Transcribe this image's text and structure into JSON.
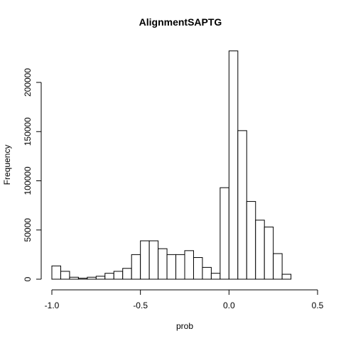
{
  "chart_data": {
    "type": "bar",
    "subtype": "histogram",
    "title": "AlignmentSAPTG",
    "xlabel": "prob",
    "ylabel": "Frequency",
    "xlim": [
      -1.0,
      0.5
    ],
    "ylim": [
      0,
      230000
    ],
    "bin_width": 0.05,
    "bins": [
      {
        "start": -1.0,
        "end": -0.95,
        "value": 13500
      },
      {
        "start": -0.95,
        "end": -0.9,
        "value": 8000
      },
      {
        "start": -0.9,
        "end": -0.85,
        "value": 2000
      },
      {
        "start": -0.85,
        "end": -0.8,
        "value": 1000
      },
      {
        "start": -0.8,
        "end": -0.75,
        "value": 2000
      },
      {
        "start": -0.75,
        "end": -0.7,
        "value": 3000
      },
      {
        "start": -0.7,
        "end": -0.65,
        "value": 6000
      },
      {
        "start": -0.65,
        "end": -0.6,
        "value": 8000
      },
      {
        "start": -0.6,
        "end": -0.55,
        "value": 11000
      },
      {
        "start": -0.55,
        "end": -0.5,
        "value": 25000
      },
      {
        "start": -0.5,
        "end": -0.45,
        "value": 39000
      },
      {
        "start": -0.45,
        "end": -0.4,
        "value": 39000
      },
      {
        "start": -0.4,
        "end": -0.35,
        "value": 31000
      },
      {
        "start": -0.35,
        "end": -0.3,
        "value": 25000
      },
      {
        "start": -0.3,
        "end": -0.25,
        "value": 25000
      },
      {
        "start": -0.25,
        "end": -0.2,
        "value": 29000
      },
      {
        "start": -0.2,
        "end": -0.15,
        "value": 22000
      },
      {
        "start": -0.15,
        "end": -0.1,
        "value": 12000
      },
      {
        "start": -0.1,
        "end": -0.05,
        "value": 6000
      },
      {
        "start": -0.05,
        "end": 0.0,
        "value": 93000
      },
      {
        "start": 0.0,
        "end": 0.05,
        "value": 232000
      },
      {
        "start": 0.05,
        "end": 0.1,
        "value": 151000
      },
      {
        "start": 0.1,
        "end": 0.15,
        "value": 79000
      },
      {
        "start": 0.15,
        "end": 0.2,
        "value": 60000
      },
      {
        "start": 0.2,
        "end": 0.25,
        "value": 53000
      },
      {
        "start": 0.25,
        "end": 0.3,
        "value": 26000
      },
      {
        "start": 0.3,
        "end": 0.35,
        "value": 5000
      }
    ],
    "xticks": [
      -1.0,
      -0.5,
      0.0,
      0.5
    ],
    "xtick_labels": [
      "-1.0",
      "-0.5",
      "0.0",
      "0.5"
    ],
    "yticks": [
      0,
      50000,
      100000,
      150000,
      200000
    ],
    "ytick_labels": [
      "0",
      "50000",
      "100000",
      "150000",
      "200000"
    ],
    "grid": false,
    "legend": "none",
    "colors": {
      "bar_fill": "#ffffff",
      "bar_stroke": "#000000",
      "background": "#ffffff"
    }
  }
}
